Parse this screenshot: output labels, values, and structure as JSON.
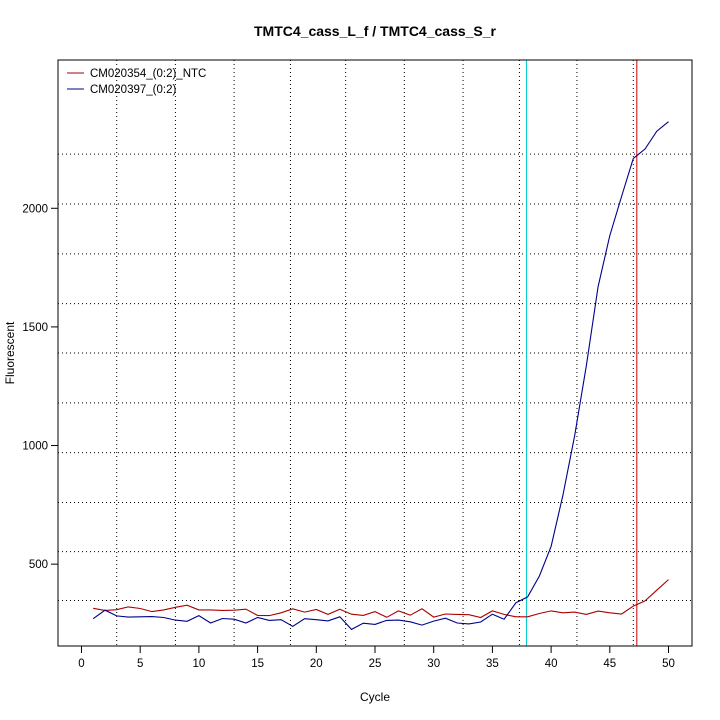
{
  "chart_data": {
    "type": "line",
    "title": "TMTC4_cass_L_f / TMTC4_cass_S_r",
    "xlabel": "Cycle",
    "ylabel": "Fluorescent",
    "xlim": [
      -2,
      52
    ],
    "ylim": [
      155,
      2625
    ],
    "xticks": [
      0,
      5,
      10,
      15,
      20,
      25,
      30,
      35,
      40,
      45,
      50
    ],
    "yticks": [
      500,
      1000,
      1500,
      2000
    ],
    "grid": true,
    "grid_x_dotted": [
      3,
      8,
      13,
      17.8,
      22.5,
      27.5,
      32.5,
      37.3,
      42.2,
      47
    ],
    "grid_y_dotted": [
      347,
      553,
      760,
      970,
      1180,
      1390,
      1598,
      1808,
      2018,
      2228
    ],
    "legend_position": "top-left",
    "series": [
      {
        "name": "CM020354_(0:2)_NTC",
        "color": "#aa0000",
        "x": [
          1,
          2,
          3,
          4,
          5,
          6,
          7,
          8,
          9,
          10,
          11,
          12,
          13,
          14,
          15,
          16,
          17,
          18,
          19,
          20,
          21,
          22,
          23,
          24,
          25,
          26,
          27,
          28,
          29,
          30,
          31,
          32,
          33,
          34,
          35,
          36,
          37,
          38,
          39,
          40,
          41,
          42,
          43,
          44,
          45,
          46,
          47,
          48,
          49,
          50
        ],
        "values": [
          314,
          305,
          308,
          320,
          313,
          300,
          307,
          318,
          327,
          307,
          307,
          305,
          306,
          310,
          284,
          283,
          295,
          312,
          298,
          309,
          288,
          310,
          289,
          284,
          300,
          276,
          303,
          285,
          312,
          277,
          290,
          288,
          287,
          275,
          303,
          288,
          278,
          278,
          292,
          303,
          295,
          298,
          288,
          302,
          295,
          290,
          323,
          345,
          390,
          435
        ]
      },
      {
        "name": "CM020397_(0:2)",
        "color": "#00008b",
        "x": [
          1,
          2,
          3,
          4,
          5,
          6,
          7,
          8,
          9,
          10,
          11,
          12,
          13,
          14,
          15,
          16,
          17,
          18,
          19,
          20,
          21,
          22,
          23,
          24,
          25,
          26,
          27,
          28,
          29,
          30,
          31,
          32,
          33,
          34,
          35,
          36,
          37,
          38,
          39,
          40,
          41,
          42,
          43,
          44,
          45,
          46,
          47,
          48,
          49,
          50
        ],
        "values": [
          270,
          306,
          282,
          277,
          278,
          279,
          275,
          264,
          259,
          283,
          252,
          271,
          268,
          252,
          275,
          263,
          266,
          238,
          270,
          266,
          261,
          278,
          225,
          251,
          246,
          263,
          264,
          257,
          243,
          260,
          272,
          252,
          248,
          256,
          289,
          268,
          337,
          362,
          450,
          575,
          790,
          1040,
          1335,
          1670,
          1885,
          2050,
          2210,
          2250,
          2325,
          2365
        ]
      }
    ],
    "vlines": [
      {
        "x": 37.9,
        "color": "#00cccc"
      },
      {
        "x": 47.3,
        "color": "#cc0000"
      }
    ]
  }
}
